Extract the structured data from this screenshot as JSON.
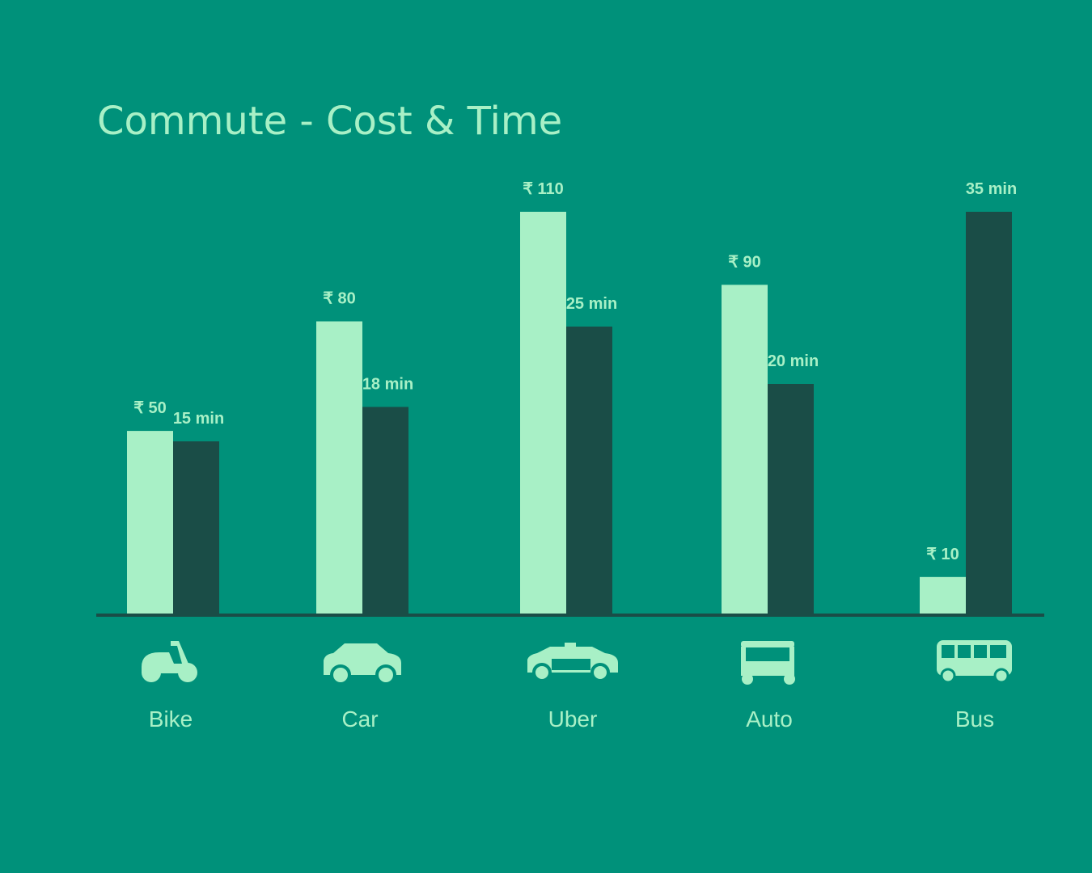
{
  "chart_data": {
    "type": "bar",
    "title": "Commute - Cost & Time",
    "categories": [
      "Bike",
      "Car",
      "Uber",
      "Auto",
      "Bus"
    ],
    "series": [
      {
        "name": "Cost",
        "color": "#a8f0c6",
        "values": [
          50,
          80,
          110,
          90,
          10
        ],
        "value_labels": [
          "₹ 50",
          "₹ 80",
          "₹ 110",
          "₹ 90",
          "₹ 10"
        ]
      },
      {
        "name": "Time",
        "color": "#1a4d47",
        "values": [
          15,
          18,
          25,
          20,
          35
        ],
        "value_labels": [
          "15 min",
          "18 min",
          "25 min",
          "20 min",
          "35 min"
        ]
      }
    ]
  }
}
